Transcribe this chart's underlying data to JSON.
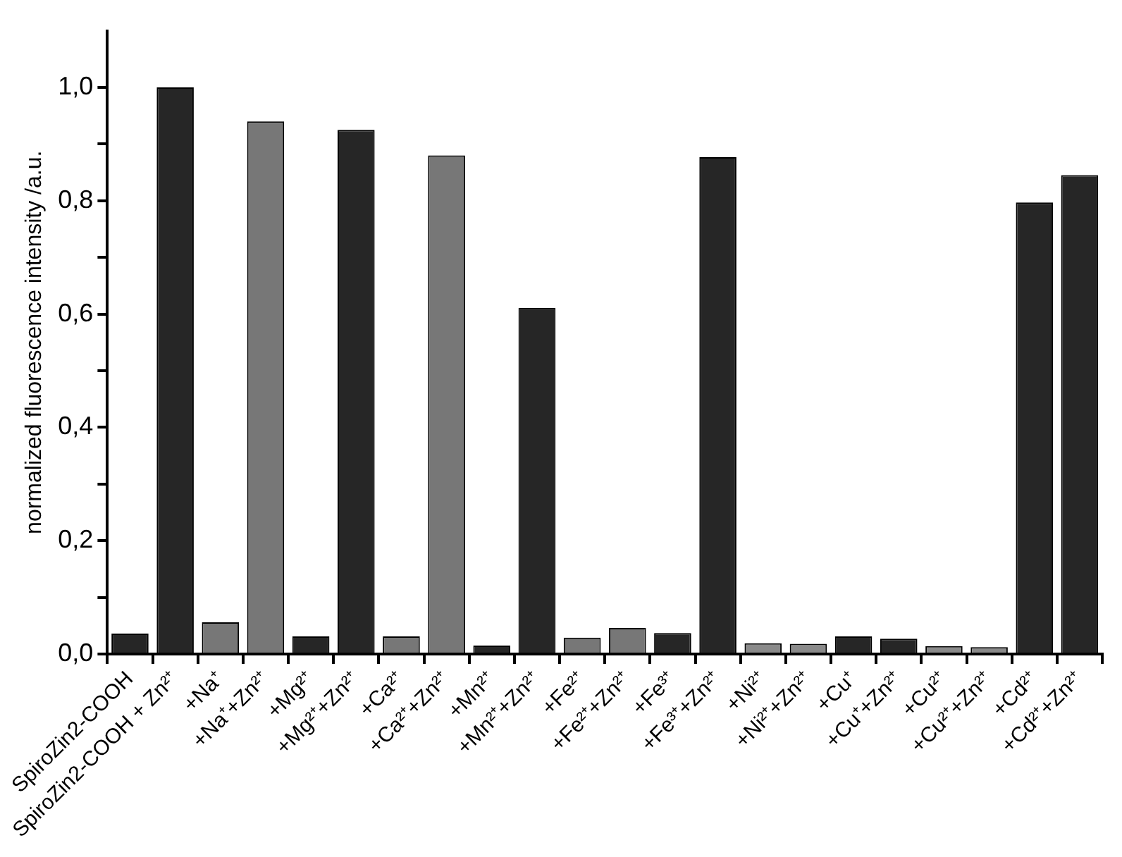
{
  "chart_data": {
    "type": "bar",
    "ylabel": "normalized fluorescence intensity /a.u.",
    "categories": [
      "SpiroZin2-COOH",
      "SpiroZin2-COOH + Zn²⁺",
      "+Na⁺",
      "+Na⁺+Zn²⁺",
      "+Mg²⁺",
      "+Mg²⁺+Zn²⁺",
      "+Ca²⁺",
      "+Ca²⁺+Zn²⁺",
      "+Mn²⁺",
      "+Mn²⁺+Zn²⁺",
      "+Fe²⁺",
      "+Fe²⁺+Zn²⁺",
      "+Fe³⁺",
      "+Fe³⁺+Zn²⁺",
      "+Ni²⁺",
      "+Ni²⁺+Zn²⁺",
      "+Cu⁺",
      "+Cu⁺+Zn²⁺",
      "+Cu²⁺",
      "+Cu²⁺+Zn²⁺",
      "+Cd²⁺",
      "+Cd²⁺+Zn²⁺"
    ],
    "values": [
      0.036,
      1.0,
      0.056,
      0.94,
      0.031,
      0.925,
      0.031,
      0.88,
      0.015,
      0.611,
      0.029,
      0.046,
      0.037,
      0.877,
      0.019,
      0.018,
      0.031,
      0.027,
      0.014,
      0.012,
      0.797,
      0.845
    ],
    "colors": [
      "#262626",
      "#262626",
      "#777777",
      "#777777",
      "#262626",
      "#262626",
      "#777777",
      "#777777",
      "#262626",
      "#262626",
      "#777777",
      "#777777",
      "#262626",
      "#262626",
      "#8a8a8a",
      "#8a8a8a",
      "#262626",
      "#262626",
      "#8a8a8a",
      "#8a8a8a",
      "#262626",
      "#262626"
    ],
    "ylim": [
      0,
      1.1
    ],
    "yticks": [
      {
        "value": 0,
        "label": "0,0"
      },
      {
        "value": 0.1,
        "label": null
      },
      {
        "value": 0.2,
        "label": "0,2"
      },
      {
        "value": 0.3,
        "label": null
      },
      {
        "value": 0.4,
        "label": "0,4"
      },
      {
        "value": 0.5,
        "label": null
      },
      {
        "value": 0.6,
        "label": "0,6"
      },
      {
        "value": 0.7,
        "label": null
      },
      {
        "value": 0.8,
        "label": "0,8"
      },
      {
        "value": 0.9,
        "label": null
      },
      {
        "value": 1.0,
        "label": "1,0"
      }
    ]
  }
}
